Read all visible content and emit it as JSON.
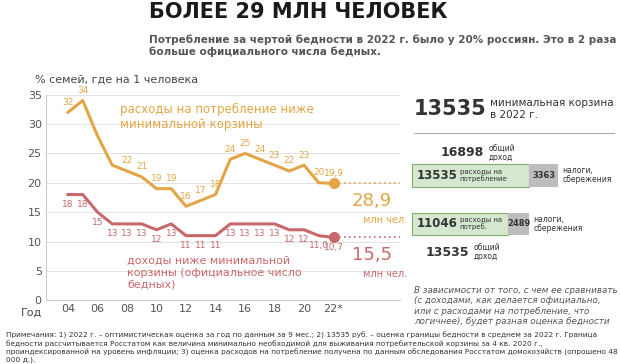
{
  "header": {
    "title": "БОЛЕЕ 29 МЛН ЧЕЛОВЕК",
    "subtitle": "Потребление за чертой бедности в 2022 г. было у 20% россиян. Это в 2 раза больше официального числа бедных."
  },
  "chart_data": {
    "type": "line",
    "ylabel": "% семей, где на 1 человека",
    "xlabel": "Год",
    "x": [
      2004,
      2005,
      2006,
      2007,
      2008,
      2009,
      2010,
      2011,
      2012,
      2013,
      2014,
      2015,
      2016,
      2017,
      2018,
      2019,
      2020,
      2021,
      2022
    ],
    "series": [
      {
        "name": "расходы на потребление ниже минимальной корзины",
        "color": "#e3a646",
        "values": [
          32,
          34,
          28,
          23,
          22,
          21,
          19,
          19,
          16,
          17,
          18,
          24,
          25,
          24,
          23,
          22,
          23,
          20,
          19.9
        ],
        "value_labels": [
          "32",
          "34",
          null,
          null,
          "22",
          "21",
          "19",
          "19",
          "16",
          "17",
          "18",
          "24",
          "25",
          "24",
          "23",
          "22",
          "23",
          "20",
          "19,9"
        ],
        "annotation": "28,9",
        "annotation_unit": "млн чел."
      },
      {
        "name": "доходы ниже минимальной корзины (официальное число бедных)",
        "color": "#c9686b",
        "values": [
          18,
          18,
          15,
          13,
          13,
          13,
          12,
          13,
          11,
          11,
          11,
          13,
          13,
          13,
          13,
          12,
          12,
          11.0,
          10.7
        ],
        "value_labels": [
          "18",
          "18",
          "15",
          "13",
          "13",
          "13",
          "12",
          "13",
          "11",
          "11",
          "11",
          "13",
          "13",
          "13",
          "13",
          "12",
          "12",
          "11,0",
          "10,7"
        ],
        "annotation": "15,5",
        "annotation_unit": "млн чел."
      }
    ],
    "xlim": [
      2002.5,
      2026.5
    ],
    "xticks": [
      {
        "value": 2004,
        "label": "04"
      },
      {
        "value": 2006,
        "label": "06"
      },
      {
        "value": 2008,
        "label": "08"
      },
      {
        "value": 2010,
        "label": "10"
      },
      {
        "value": 2012,
        "label": "12"
      },
      {
        "value": 2014,
        "label": "14"
      },
      {
        "value": 2016,
        "label": "16"
      },
      {
        "value": 2018,
        "label": "18"
      },
      {
        "value": 2020,
        "label": "20"
      },
      {
        "value": 2022,
        "label": "22*"
      }
    ],
    "ylim": [
      0,
      35
    ],
    "yticks": [
      0,
      5,
      10,
      15,
      20,
      25,
      30,
      35
    ],
    "grid": true,
    "data_labels": true
  },
  "side_panel": {
    "basket": {
      "value": 13535,
      "label": "минимальная корзина в 2022 г."
    },
    "comparisons": [
      {
        "total": 16898,
        "total_label": "общий доход",
        "parts": [
          {
            "value": 13535,
            "label": "расходы на потребление"
          },
          {
            "value": 3363,
            "label": "налоги, сбережения"
          }
        ]
      },
      {
        "total": 13535,
        "total_label": "общий доход",
        "parts": [
          {
            "value": 11046,
            "label": "расходы на потреб."
          },
          {
            "value": 2489,
            "label": "налоги, сбережения"
          }
        ]
      }
    ],
    "remark": "В зависимости от того, с чем ее сравнивать (с доходами, как делается официально, или с расходами на потребление, что логичнее), будет разная оценка бедности"
  },
  "notes": "Примечания: 1) 2022 г. – оптимистическая оценка за год по данным за 9 мес.; 2) 13535 руб. – оценка границы бедности в среднем за 2022 г. Граница бедности рассчитывается Росстатом как величина минимально необходимой для выживания потребительской корзины за 4 кв. 2020 г., проиндексированной на уровень инфляции; 3) оценка расходов на потребление получена по данным обследования Росстатом домохозяйств (опрошено 48 000 д.)."
}
